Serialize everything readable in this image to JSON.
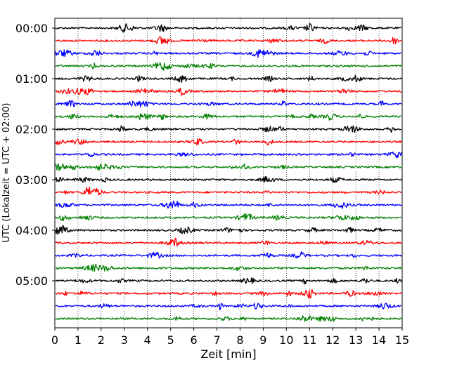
{
  "chart_data": {
    "type": "line",
    "title": "",
    "xlabel": "Zeit  [min]",
    "ylabel": "UTC (Lokalzeit = UTC + 02:00)",
    "xlim": [
      0,
      15
    ],
    "x_ticks": [
      "0",
      "1",
      "2",
      "3",
      "4",
      "5",
      "6",
      "7",
      "8",
      "9",
      "10",
      "11",
      "12",
      "13",
      "14",
      "15"
    ],
    "y_ticks": [
      "00:00",
      "01:00",
      "02:00",
      "03:00",
      "04:00",
      "05:00"
    ],
    "vertical_grid": true,
    "grid_style": "dotted",
    "trace_interval_min": 15,
    "trace_count": 24,
    "trace_colors": [
      "#000000",
      "#ff0000",
      "#0000ff",
      "#008000"
    ],
    "traces": [
      {
        "time": "00:00",
        "color": "#000000"
      },
      {
        "time": "00:15",
        "color": "#ff0000"
      },
      {
        "time": "00:30",
        "color": "#0000ff"
      },
      {
        "time": "00:45",
        "color": "#008000"
      },
      {
        "time": "01:00",
        "color": "#000000"
      },
      {
        "time": "01:15",
        "color": "#ff0000"
      },
      {
        "time": "01:30",
        "color": "#0000ff"
      },
      {
        "time": "01:45",
        "color": "#008000"
      },
      {
        "time": "02:00",
        "color": "#000000"
      },
      {
        "time": "02:15",
        "color": "#ff0000"
      },
      {
        "time": "02:30",
        "color": "#0000ff"
      },
      {
        "time": "02:45",
        "color": "#008000"
      },
      {
        "time": "03:00",
        "color": "#000000"
      },
      {
        "time": "03:15",
        "color": "#ff0000"
      },
      {
        "time": "03:30",
        "color": "#0000ff"
      },
      {
        "time": "03:45",
        "color": "#008000"
      },
      {
        "time": "04:00",
        "color": "#000000"
      },
      {
        "time": "04:15",
        "color": "#ff0000"
      },
      {
        "time": "04:30",
        "color": "#0000ff"
      },
      {
        "time": "04:45",
        "color": "#008000"
      },
      {
        "time": "05:00",
        "color": "#000000"
      },
      {
        "time": "05:15",
        "color": "#ff0000"
      },
      {
        "time": "05:30",
        "color": "#0000ff"
      },
      {
        "time": "05:45",
        "color": "#008000"
      }
    ]
  }
}
